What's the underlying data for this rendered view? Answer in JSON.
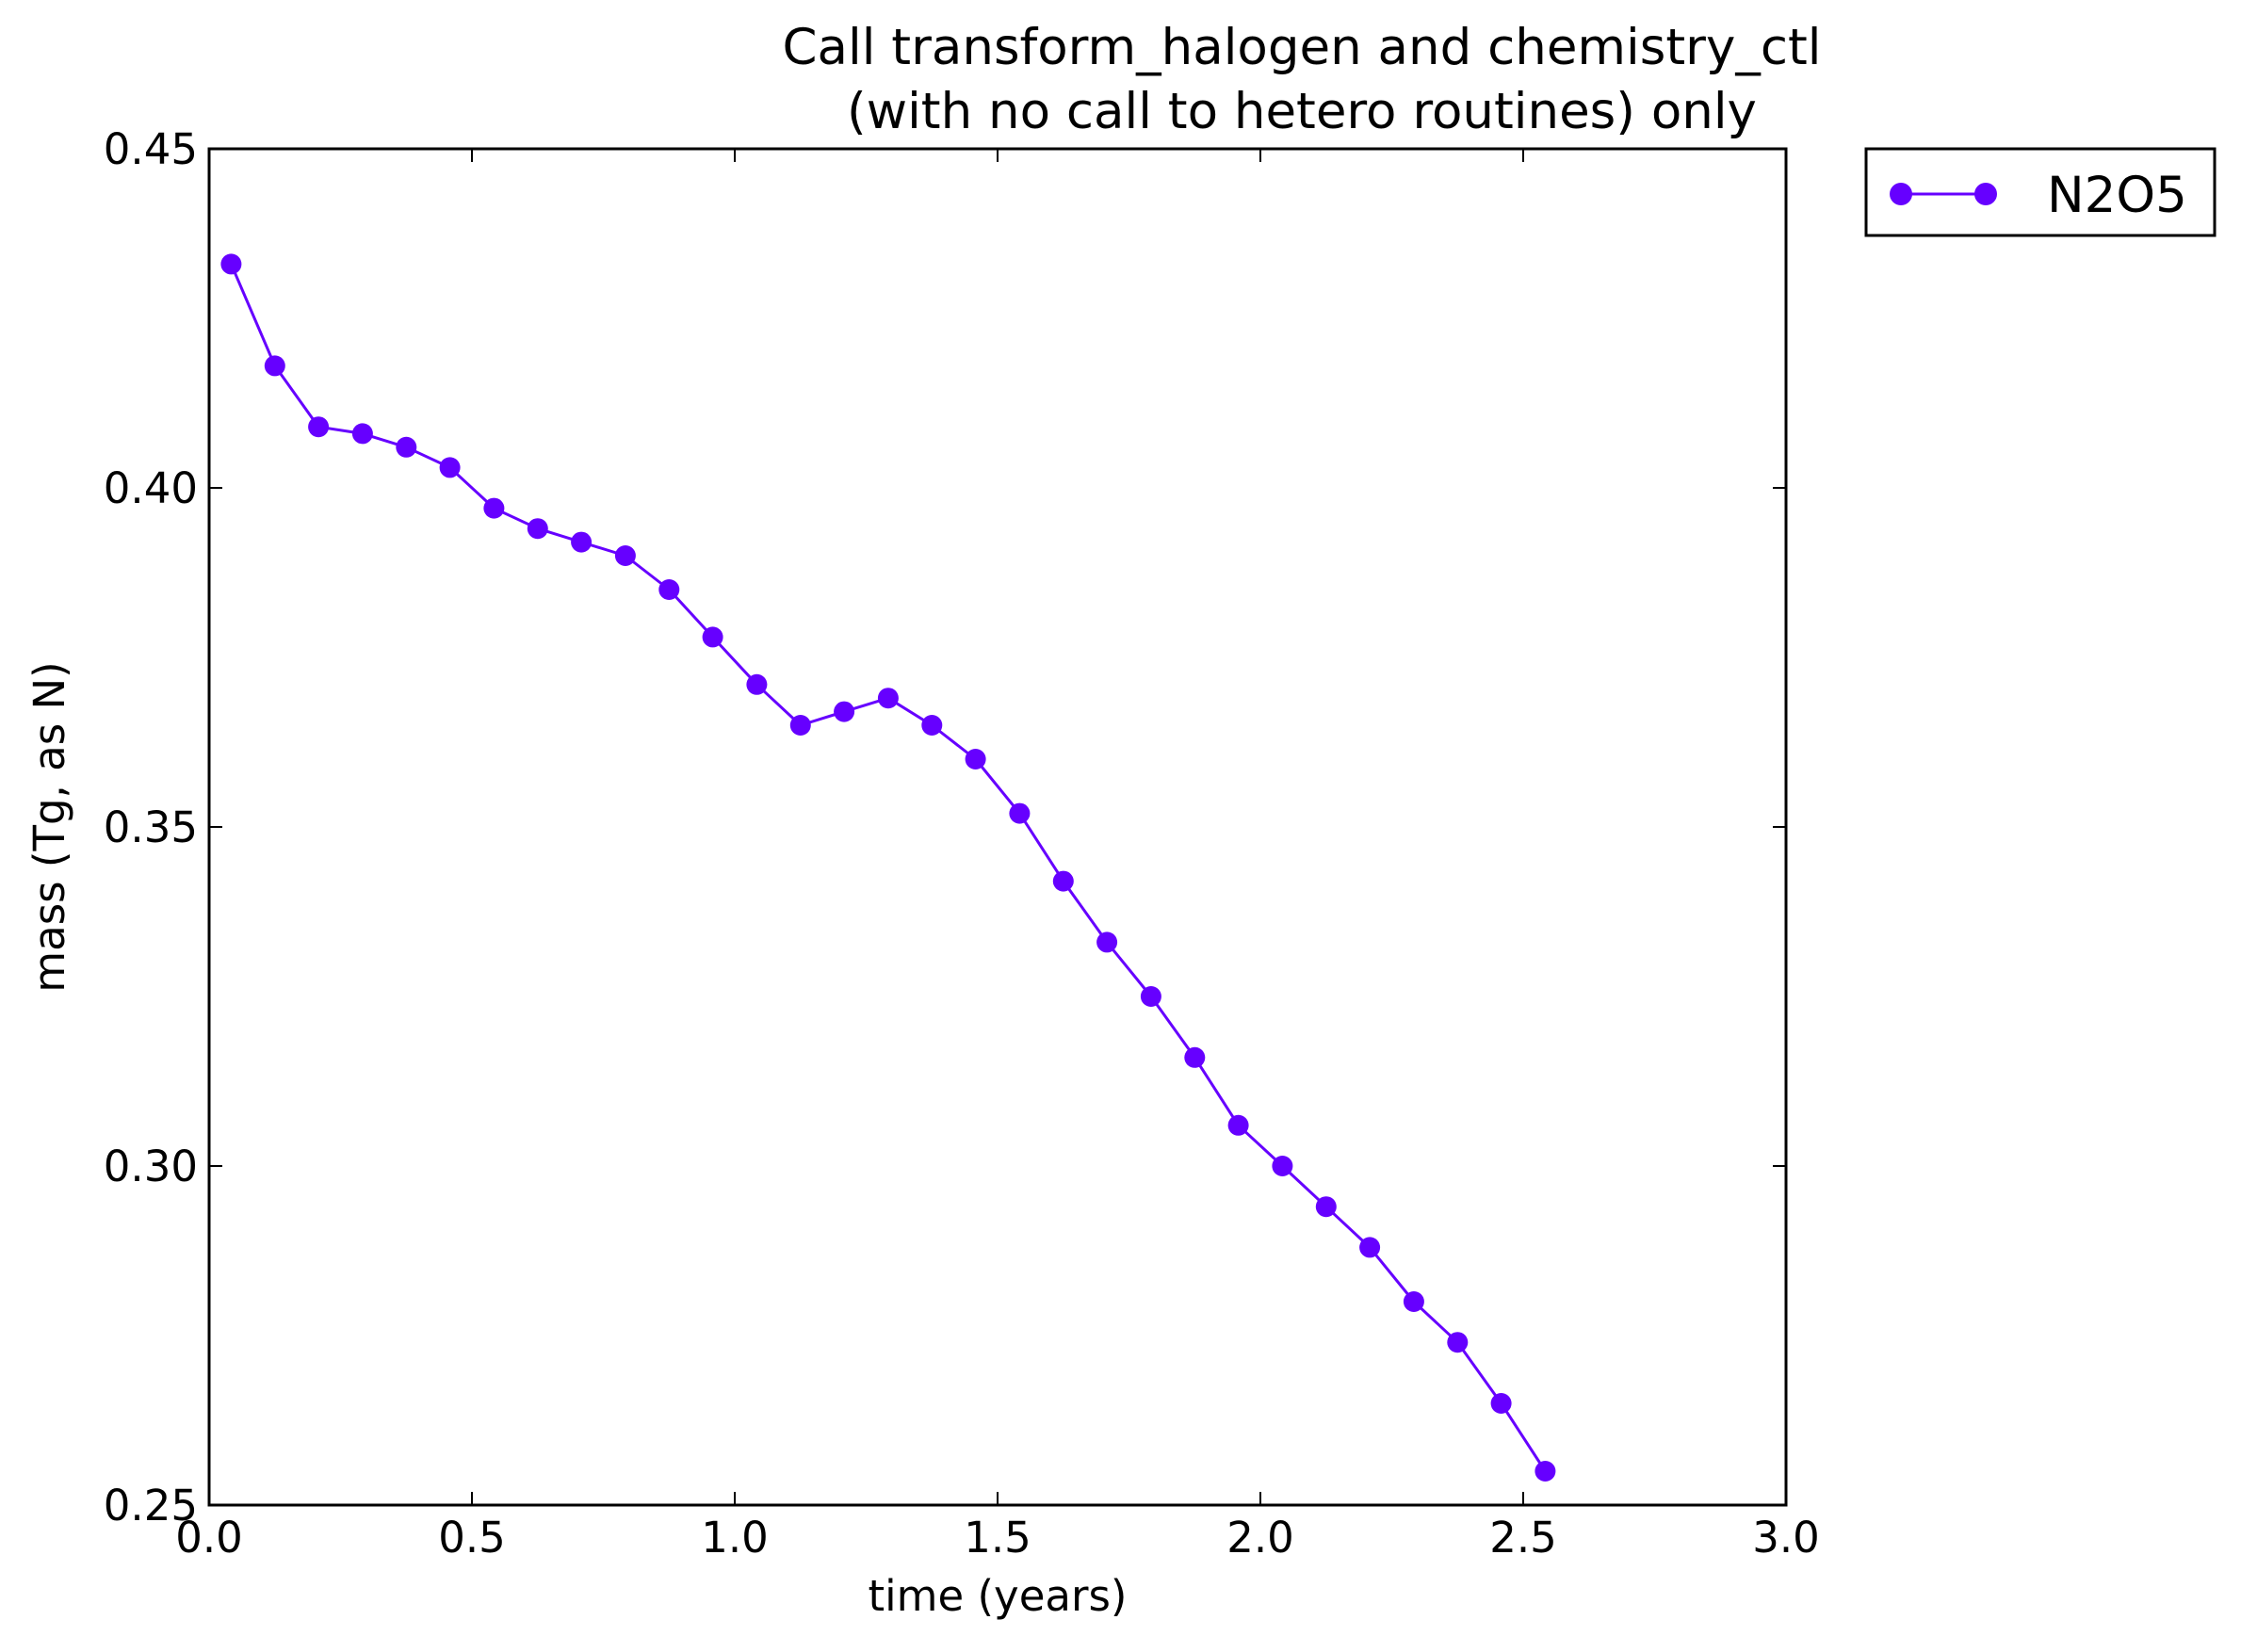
{
  "chart_data": {
    "type": "line",
    "title_line1": "Call transform_halogen and chemistry_ctl",
    "title_line2": "(with no call to hetero routines) only",
    "xlabel": "time (years)",
    "ylabel": "mass (Tg, as N)",
    "xlim": [
      0.0,
      3.0
    ],
    "ylim": [
      0.25,
      0.45
    ],
    "xticks": [
      "0.0",
      "0.5",
      "1.0",
      "1.5",
      "2.0",
      "2.5",
      "3.0"
    ],
    "yticks": [
      "0.25",
      "0.30",
      "0.35",
      "0.40",
      "0.45"
    ],
    "grid": false,
    "legend_position": "outside-top-right",
    "series": [
      {
        "name": "N2O5",
        "color": "#6600ff",
        "marker": "circle",
        "x": [
          0.042,
          0.125,
          0.208,
          0.292,
          0.375,
          0.458,
          0.542,
          0.625,
          0.708,
          0.792,
          0.875,
          0.958,
          1.042,
          1.125,
          1.208,
          1.292,
          1.375,
          1.458,
          1.542,
          1.625,
          1.708,
          1.792,
          1.875,
          1.958,
          2.042,
          2.125,
          2.208,
          2.292,
          2.375,
          2.458,
          2.542
        ],
        "y": [
          0.433,
          0.418,
          0.409,
          0.408,
          0.406,
          0.403,
          0.397,
          0.394,
          0.392,
          0.39,
          0.385,
          0.378,
          0.371,
          0.365,
          0.367,
          0.369,
          0.365,
          0.36,
          0.352,
          0.342,
          0.333,
          0.325,
          0.316,
          0.306,
          0.3,
          0.294,
          0.288,
          0.28,
          0.274,
          0.265,
          0.255
        ]
      }
    ]
  }
}
